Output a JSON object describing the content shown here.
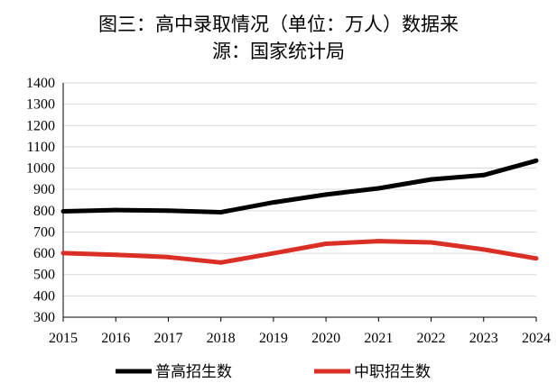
{
  "chart_data": {
    "type": "line",
    "title_line1": "图三：高中录取情况（单位：万人）数据来",
    "title_line2": "源：国家统计局",
    "categories": [
      "2015",
      "2016",
      "2017",
      "2018",
      "2019",
      "2020",
      "2021",
      "2022",
      "2023",
      "2024"
    ],
    "y_ticks": [
      "1400",
      "1300",
      "1200",
      "1100",
      "1000",
      "900",
      "800",
      "700",
      "600",
      "500",
      "400",
      "300"
    ],
    "ylim": [
      300,
      1400
    ],
    "grid": true,
    "legend_position": "bottom",
    "series": [
      {
        "name": "普高招生数",
        "color": "#000000",
        "values": [
          797,
          803,
          800,
          793,
          839,
          876,
          905,
          947,
          967,
          1035
        ]
      },
      {
        "name": "中职招生数",
        "color": "#d92f25",
        "values": [
          601,
          593,
          582,
          557,
          600,
          645,
          657,
          651,
          618,
          576
        ]
      }
    ]
  }
}
